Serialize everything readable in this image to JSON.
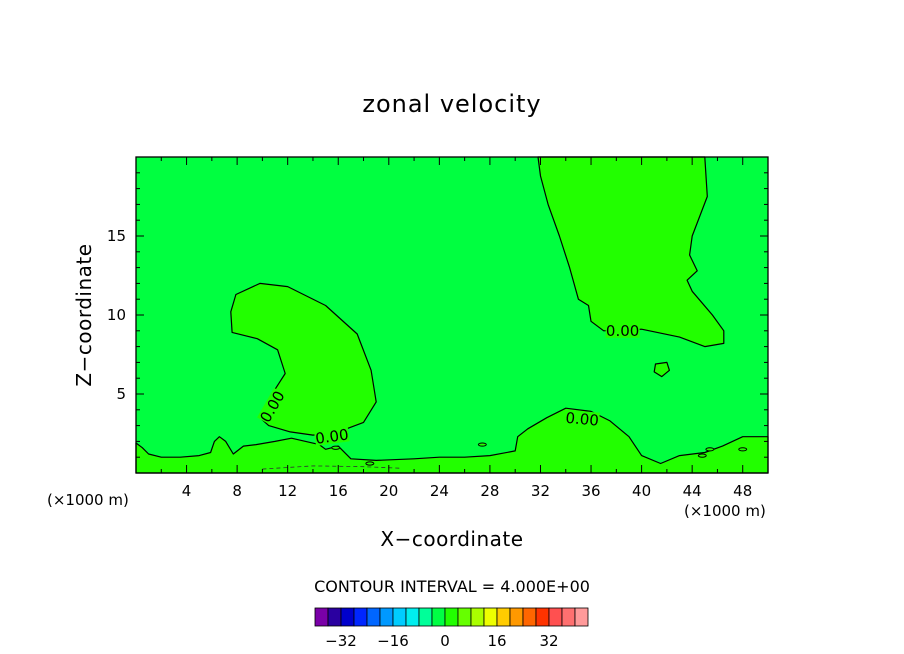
{
  "chart_data": {
    "type": "contour",
    "title": "zonal velocity",
    "xlabel": "X−coordinate",
    "ylabel": "Z−coordinate",
    "x_unit_left": "(×1000 m)",
    "x_unit_right": "(×1000 m)",
    "xlim": [
      0,
      50
    ],
    "ylim": [
      0,
      20
    ],
    "x_ticks": [
      4,
      8,
      12,
      16,
      20,
      24,
      28,
      32,
      36,
      40,
      44,
      48
    ],
    "y_ticks": [
      5,
      10,
      15
    ],
    "x_tick_labels": [
      "4",
      "8",
      "12",
      "16",
      "20",
      "24",
      "28",
      "32",
      "36",
      "40",
      "44",
      "48"
    ],
    "y_tick_labels": [
      "5",
      "10",
      "15"
    ],
    "contour_labels": [
      "0.00",
      "0.00",
      "0.00",
      "0.00"
    ],
    "contour_interval_text": "CONTOUR INTERVAL = 4.000E+00",
    "colorbar": {
      "ticks": [
        -32,
        -16,
        0,
        16,
        32
      ],
      "tick_labels": [
        "−32",
        "−16",
        "0",
        "16",
        "32"
      ],
      "colors": [
        "#7a00a8",
        "#2a00a0",
        "#0000cc",
        "#0026ff",
        "#0066ff",
        "#0099ff",
        "#00ccff",
        "#00eeee",
        "#00ff99",
        "#00ff44",
        "#22ff00",
        "#66ff00",
        "#aaff00",
        "#eeff00",
        "#ffcc00",
        "#ff9900",
        "#ff6600",
        "#ff3300",
        "#ff5050",
        "#ff7070",
        "#ff9a9a"
      ]
    },
    "fills": {
      "background": "#00ff40",
      "positive": "#22ff00"
    },
    "regions": {
      "upper_left": [
        [
          9.8,
          12.0
        ],
        [
          12.0,
          11.8
        ],
        [
          15.0,
          10.6
        ],
        [
          17.5,
          8.8
        ],
        [
          18.6,
          6.5
        ],
        [
          19.0,
          4.5
        ],
        [
          18.0,
          3.2
        ],
        [
          16.0,
          2.6
        ],
        [
          14.0,
          2.4
        ],
        [
          12.2,
          2.6
        ],
        [
          10.5,
          3.0
        ],
        [
          9.8,
          3.5
        ],
        [
          10.6,
          4.8
        ],
        [
          11.8,
          6.3
        ],
        [
          11.2,
          7.8
        ],
        [
          9.6,
          8.5
        ],
        [
          7.6,
          8.9
        ],
        [
          7.5,
          10.2
        ],
        [
          7.9,
          11.3
        ]
      ],
      "upper_right": [
        [
          31.8,
          20.0
        ],
        [
          45.0,
          20.0
        ],
        [
          45.2,
          17.5
        ],
        [
          44.0,
          15.0
        ],
        [
          43.8,
          13.8
        ],
        [
          44.4,
          12.8
        ],
        [
          43.6,
          12.2
        ],
        [
          44.0,
          11.5
        ],
        [
          45.6,
          10.0
        ],
        [
          46.5,
          9.0
        ],
        [
          46.5,
          8.2
        ],
        [
          45.0,
          8.0
        ],
        [
          43.0,
          8.6
        ],
        [
          40.0,
          9.1
        ],
        [
          37.0,
          9.0
        ],
        [
          36.0,
          9.6
        ],
        [
          35.8,
          10.6
        ],
        [
          35.0,
          11.0
        ],
        [
          34.3,
          13.0
        ],
        [
          33.5,
          15.0
        ],
        [
          32.6,
          17.0
        ],
        [
          32.0,
          18.8
        ]
      ],
      "lower_band": [
        [
          0.0,
          0.0
        ],
        [
          50.0,
          0.0
        ],
        [
          50.0,
          2.3
        ],
        [
          48.0,
          2.3
        ],
        [
          46.4,
          1.7
        ],
        [
          45.0,
          1.3
        ],
        [
          43.0,
          1.1
        ],
        [
          41.5,
          0.6
        ],
        [
          40.0,
          1.1
        ],
        [
          39.0,
          2.3
        ],
        [
          37.5,
          3.3
        ],
        [
          36.0,
          3.9
        ],
        [
          34.0,
          4.1
        ],
        [
          32.5,
          3.5
        ],
        [
          31.0,
          2.8
        ],
        [
          30.2,
          2.3
        ],
        [
          30.0,
          1.4
        ],
        [
          28.0,
          1.1
        ],
        [
          26.0,
          1.0
        ],
        [
          24.0,
          1.0
        ],
        [
          22.0,
          0.9
        ],
        [
          19.0,
          0.8
        ],
        [
          17.0,
          0.9
        ],
        [
          16.0,
          1.7
        ],
        [
          15.0,
          1.5
        ],
        [
          14.5,
          1.8
        ],
        [
          12.3,
          2.2
        ],
        [
          11.0,
          2.0
        ],
        [
          9.5,
          1.8
        ],
        [
          8.5,
          1.7
        ],
        [
          7.7,
          1.2
        ],
        [
          7.1,
          2.0
        ],
        [
          6.6,
          2.3
        ],
        [
          6.2,
          2.0
        ],
        [
          5.9,
          1.3
        ],
        [
          5.0,
          1.1
        ],
        [
          3.5,
          1.0
        ],
        [
          2.0,
          1.0
        ],
        [
          1.0,
          1.2
        ],
        [
          0.5,
          1.6
        ],
        [
          0.0,
          1.9
        ]
      ],
      "small_loop": [
        [
          41.1,
          6.9
        ],
        [
          42.0,
          7.0
        ],
        [
          42.2,
          6.5
        ],
        [
          41.6,
          6.1
        ],
        [
          41.0,
          6.4
        ]
      ]
    }
  }
}
